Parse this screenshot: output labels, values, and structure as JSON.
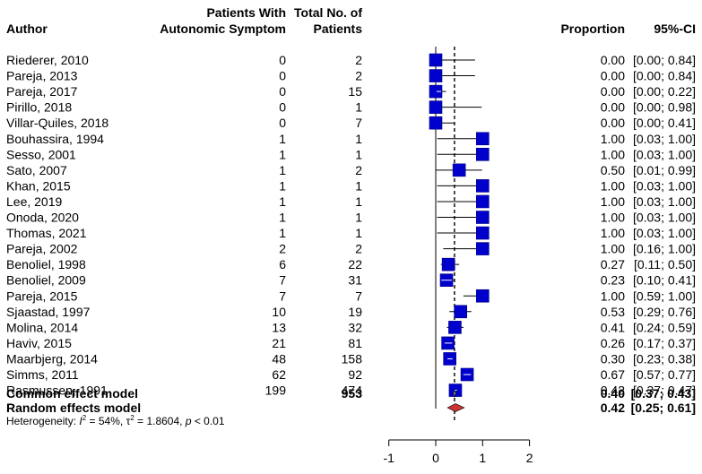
{
  "chart_data": {
    "type": "forest",
    "headers": {
      "author": "Author",
      "events_line1": "Patients With",
      "events_line2": "Autonomic Symptom",
      "total_line1": "Total No. of",
      "total_line2": "Patients",
      "proportion": "Proportion",
      "ci": "95%-CI"
    },
    "studies": [
      {
        "author": "Riederer, 2010",
        "events": "0",
        "total": "2",
        "proportion": 0.0,
        "lower": 0.0,
        "upper": 0.84,
        "prop_label": "0.00",
        "ci_label": "[0.00; 0.84]"
      },
      {
        "author": "Pareja, 2013",
        "events": "0",
        "total": "2",
        "proportion": 0.0,
        "lower": 0.0,
        "upper": 0.84,
        "prop_label": "0.00",
        "ci_label": "[0.00; 0.84]"
      },
      {
        "author": "Pareja, 2017",
        "events": "0",
        "total": "15",
        "proportion": 0.0,
        "lower": 0.0,
        "upper": 0.22,
        "prop_label": "0.00",
        "ci_label": "[0.00; 0.22]"
      },
      {
        "author": "Pirillo, 2018",
        "events": "0",
        "total": "1",
        "proportion": 0.0,
        "lower": 0.0,
        "upper": 0.98,
        "prop_label": "0.00",
        "ci_label": "[0.00; 0.98]"
      },
      {
        "author": "Villar-Quiles, 2018",
        "events": "0",
        "total": "7",
        "proportion": 0.0,
        "lower": 0.0,
        "upper": 0.41,
        "prop_label": "0.00",
        "ci_label": "[0.00; 0.41]"
      },
      {
        "author": "Bouhassira, 1994",
        "events": "1",
        "total": "1",
        "proportion": 1.0,
        "lower": 0.03,
        "upper": 1.0,
        "prop_label": "1.00",
        "ci_label": "[0.03; 1.00]"
      },
      {
        "author": "Sesso, 2001",
        "events": "1",
        "total": "1",
        "proportion": 1.0,
        "lower": 0.03,
        "upper": 1.0,
        "prop_label": "1.00",
        "ci_label": "[0.03; 1.00]"
      },
      {
        "author": "Sato, 2007",
        "events": "1",
        "total": "2",
        "proportion": 0.5,
        "lower": 0.01,
        "upper": 0.99,
        "prop_label": "0.50",
        "ci_label": "[0.01; 0.99]"
      },
      {
        "author": "Khan, 2015",
        "events": "1",
        "total": "1",
        "proportion": 1.0,
        "lower": 0.03,
        "upper": 1.0,
        "prop_label": "1.00",
        "ci_label": "[0.03; 1.00]"
      },
      {
        "author": "Lee, 2019",
        "events": "1",
        "total": "1",
        "proportion": 1.0,
        "lower": 0.03,
        "upper": 1.0,
        "prop_label": "1.00",
        "ci_label": "[0.03; 1.00]"
      },
      {
        "author": "Onoda, 2020",
        "events": "1",
        "total": "1",
        "proportion": 1.0,
        "lower": 0.03,
        "upper": 1.0,
        "prop_label": "1.00",
        "ci_label": "[0.03; 1.00]"
      },
      {
        "author": "Thomas, 2021",
        "events": "1",
        "total": "1",
        "proportion": 1.0,
        "lower": 0.03,
        "upper": 1.0,
        "prop_label": "1.00",
        "ci_label": "[0.03; 1.00]"
      },
      {
        "author": "Pareja, 2002",
        "events": "2",
        "total": "2",
        "proportion": 1.0,
        "lower": 0.16,
        "upper": 1.0,
        "prop_label": "1.00",
        "ci_label": "[0.16; 1.00]"
      },
      {
        "author": "Benoliel, 1998",
        "events": "6",
        "total": "22",
        "proportion": 0.27,
        "lower": 0.11,
        "upper": 0.5,
        "prop_label": "0.27",
        "ci_label": "[0.11; 0.50]"
      },
      {
        "author": "Benoliel, 2009",
        "events": "7",
        "total": "31",
        "proportion": 0.23,
        "lower": 0.1,
        "upper": 0.41,
        "prop_label": "0.23",
        "ci_label": "[0.10; 0.41]"
      },
      {
        "author": "Pareja, 2015",
        "events": "7",
        "total": "7",
        "proportion": 1.0,
        "lower": 0.59,
        "upper": 1.0,
        "prop_label": "1.00",
        "ci_label": "[0.59; 1.00]"
      },
      {
        "author": "Sjaastad, 1997",
        "events": "10",
        "total": "19",
        "proportion": 0.53,
        "lower": 0.29,
        "upper": 0.76,
        "prop_label": "0.53",
        "ci_label": "[0.29; 0.76]"
      },
      {
        "author": "Molina, 2014",
        "events": "13",
        "total": "32",
        "proportion": 0.41,
        "lower": 0.24,
        "upper": 0.59,
        "prop_label": "0.41",
        "ci_label": "[0.24; 0.59]"
      },
      {
        "author": "Haviv, 2015",
        "events": "21",
        "total": "81",
        "proportion": 0.26,
        "lower": 0.17,
        "upper": 0.37,
        "prop_label": "0.26",
        "ci_label": "[0.17; 0.37]"
      },
      {
        "author": "Maarbjerg, 2014",
        "events": "48",
        "total": "158",
        "proportion": 0.3,
        "lower": 0.23,
        "upper": 0.38,
        "prop_label": "0.30",
        "ci_label": "[0.23; 0.38]"
      },
      {
        "author": "Simms, 2011",
        "events": "62",
        "total": "92",
        "proportion": 0.67,
        "lower": 0.57,
        "upper": 0.77,
        "prop_label": "0.67",
        "ci_label": "[0.57; 0.77]"
      },
      {
        "author": "Rasmussen, 1991",
        "events": "199",
        "total": "474",
        "proportion": 0.42,
        "lower": 0.37,
        "upper": 0.47,
        "prop_label": "0.42",
        "ci_label": "[0.37; 0.47]"
      }
    ],
    "common_model": {
      "label": "Common effect model",
      "total": "953",
      "proportion": 0.4,
      "lower": 0.37,
      "upper": 0.43,
      "prop_label": "0.40",
      "ci_label": "[0.37; 0.43]"
    },
    "random_model": {
      "label": "Random effects model",
      "proportion": 0.42,
      "lower": 0.25,
      "upper": 0.61,
      "prop_label": "0.42",
      "ci_label": "[0.25; 0.61]"
    },
    "heterogeneity": {
      "prefix": "Heterogeneity: ",
      "i2_symbol": "I",
      "i2_value": " = 54%, ",
      "tau2_symbol": "τ",
      "tau2_value": " = 1.8604, ",
      "p_symbol": "p",
      "p_value": " < 0.01"
    },
    "x_axis": {
      "ticks": [
        -1,
        0,
        1,
        2
      ],
      "tick_labels": [
        "-1",
        "0",
        "1",
        "2"
      ],
      "range": [
        -1,
        2
      ]
    },
    "reference_lines": {
      "null_value": 0,
      "pooled_value": 0.4
    },
    "colors": {
      "square": "#0000cc",
      "square_stroke": "#000080",
      "random_diamond": "#cc3333",
      "common_diamond": "#808080",
      "line": "#000000"
    }
  }
}
